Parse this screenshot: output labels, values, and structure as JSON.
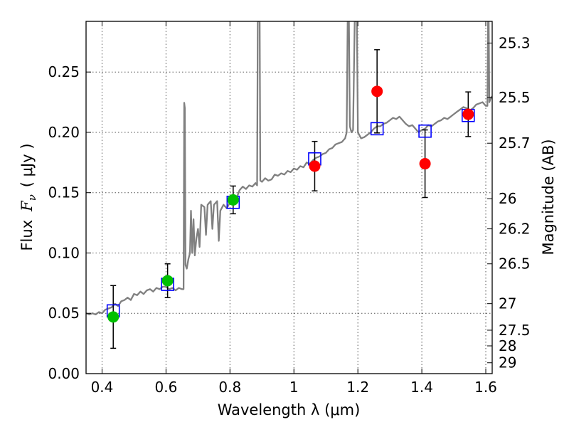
{
  "chart_data": {
    "type": "scatter",
    "xlabel": "Wavelength  λ (μm)",
    "ylabel_text": "Flux",
    "ylabel_symbol": "F",
    "ylabel_subscript": "ν",
    "ylabel_unit": "( μJy )",
    "y2label": "Magnitude (AB)",
    "xlim": [
      0.35,
      1.62
    ],
    "ylim": [
      0.0,
      0.292
    ],
    "xticks": [
      0.4,
      0.6,
      0.8,
      1.0,
      1.2,
      1.4,
      1.6
    ],
    "xtick_labels": [
      "0.4",
      "0.6",
      "0.8",
      "1",
      "1.2",
      "1.4",
      "1.6"
    ],
    "yticks": [
      0.0,
      0.05,
      0.1,
      0.15,
      0.2,
      0.25
    ],
    "ytick_labels": [
      "0.00",
      "0.05",
      "0.10",
      "0.15",
      "0.20",
      "0.25"
    ],
    "y2ticks": [
      {
        "flux": 0.274,
        "label": "25.3"
      },
      {
        "flux": 0.229,
        "label": "25.5"
      },
      {
        "flux": 0.191,
        "label": "25.7"
      },
      {
        "flux": 0.145,
        "label": "26"
      },
      {
        "flux": 0.12,
        "label": "26.2"
      },
      {
        "flux": 0.091,
        "label": "26.5"
      },
      {
        "flux": 0.058,
        "label": "27"
      },
      {
        "flux": 0.036,
        "label": "27.5"
      },
      {
        "flux": 0.023,
        "label": "28"
      },
      {
        "flux": 0.009,
        "label": "29"
      }
    ],
    "grid": true,
    "colors": {
      "model": "#808080",
      "model_photometry": "#0000ff",
      "optical_obs": "#00c000",
      "nir_obs": "#ff0000",
      "errorbar": "#000000",
      "grid": "#555555"
    },
    "series": [
      {
        "name": "model_spectrum",
        "style": "line",
        "points": [
          [
            0.35,
            0.05
          ],
          [
            0.36,
            0.049
          ],
          [
            0.37,
            0.05
          ],
          [
            0.38,
            0.049
          ],
          [
            0.39,
            0.051
          ],
          [
            0.4,
            0.05
          ],
          [
            0.41,
            0.053
          ],
          [
            0.42,
            0.054
          ],
          [
            0.43,
            0.055
          ],
          [
            0.44,
            0.058
          ],
          [
            0.45,
            0.056
          ],
          [
            0.46,
            0.06
          ],
          [
            0.47,
            0.061
          ],
          [
            0.48,
            0.063
          ],
          [
            0.49,
            0.061
          ],
          [
            0.5,
            0.066
          ],
          [
            0.51,
            0.065
          ],
          [
            0.52,
            0.068
          ],
          [
            0.53,
            0.066
          ],
          [
            0.54,
            0.069
          ],
          [
            0.55,
            0.07
          ],
          [
            0.56,
            0.068
          ],
          [
            0.57,
            0.071
          ],
          [
            0.58,
            0.07
          ],
          [
            0.59,
            0.072
          ],
          [
            0.6,
            0.072
          ],
          [
            0.61,
            0.07
          ],
          [
            0.62,
            0.071
          ],
          [
            0.63,
            0.069
          ],
          [
            0.64,
            0.071
          ],
          [
            0.65,
            0.07
          ],
          [
            0.655,
            0.07
          ],
          [
            0.657,
            0.2245
          ],
          [
            0.659,
            0.22
          ],
          [
            0.661,
            0.09
          ],
          [
            0.665,
            0.087
          ],
          [
            0.67,
            0.095
          ],
          [
            0.675,
            0.1
          ],
          [
            0.678,
            0.135
          ],
          [
            0.682,
            0.1
          ],
          [
            0.686,
            0.128
          ],
          [
            0.69,
            0.098
          ],
          [
            0.695,
            0.112
          ],
          [
            0.7,
            0.12
          ],
          [
            0.705,
            0.105
          ],
          [
            0.71,
            0.14
          ],
          [
            0.72,
            0.138
          ],
          [
            0.725,
            0.115
          ],
          [
            0.73,
            0.14
          ],
          [
            0.74,
            0.143
          ],
          [
            0.745,
            0.12
          ],
          [
            0.75,
            0.14
          ],
          [
            0.76,
            0.143
          ],
          [
            0.765,
            0.11
          ],
          [
            0.77,
            0.135
          ],
          [
            0.78,
            0.14
          ],
          [
            0.79,
            0.137
          ],
          [
            0.8,
            0.142
          ],
          [
            0.81,
            0.148
          ],
          [
            0.82,
            0.145
          ],
          [
            0.83,
            0.152
          ],
          [
            0.84,
            0.155
          ],
          [
            0.85,
            0.153
          ],
          [
            0.86,
            0.156
          ],
          [
            0.87,
            0.155
          ],
          [
            0.88,
            0.158
          ],
          [
            0.885,
            0.156
          ],
          [
            0.887,
            0.292
          ],
          [
            0.893,
            0.292
          ],
          [
            0.895,
            0.16
          ],
          [
            0.9,
            0.159
          ],
          [
            0.91,
            0.162
          ],
          [
            0.92,
            0.16
          ],
          [
            0.93,
            0.161
          ],
          [
            0.94,
            0.165
          ],
          [
            0.95,
            0.164
          ],
          [
            0.96,
            0.166
          ],
          [
            0.97,
            0.165
          ],
          [
            0.98,
            0.168
          ],
          [
            0.99,
            0.167
          ],
          [
            1.0,
            0.17
          ],
          [
            1.01,
            0.169
          ],
          [
            1.02,
            0.172
          ],
          [
            1.03,
            0.171
          ],
          [
            1.04,
            0.175
          ],
          [
            1.05,
            0.174
          ],
          [
            1.06,
            0.177
          ],
          [
            1.07,
            0.179
          ],
          [
            1.08,
            0.18
          ],
          [
            1.09,
            0.182
          ],
          [
            1.1,
            0.183
          ],
          [
            1.11,
            0.186
          ],
          [
            1.12,
            0.187
          ],
          [
            1.13,
            0.19
          ],
          [
            1.14,
            0.191
          ],
          [
            1.15,
            0.192
          ],
          [
            1.16,
            0.195
          ],
          [
            1.165,
            0.2
          ],
          [
            1.168,
            0.292
          ],
          [
            1.172,
            0.292
          ],
          [
            1.175,
            0.205
          ],
          [
            1.18,
            0.2
          ],
          [
            1.185,
            0.202
          ],
          [
            1.19,
            0.292
          ],
          [
            1.197,
            0.292
          ],
          [
            1.2,
            0.2
          ],
          [
            1.21,
            0.195
          ],
          [
            1.22,
            0.196
          ],
          [
            1.23,
            0.198
          ],
          [
            1.24,
            0.2
          ],
          [
            1.25,
            0.203
          ],
          [
            1.26,
            0.205
          ],
          [
            1.27,
            0.205
          ],
          [
            1.28,
            0.207
          ],
          [
            1.29,
            0.208
          ],
          [
            1.3,
            0.21
          ],
          [
            1.31,
            0.212
          ],
          [
            1.32,
            0.211
          ],
          [
            1.33,
            0.213
          ],
          [
            1.34,
            0.21
          ],
          [
            1.35,
            0.207
          ],
          [
            1.36,
            0.205
          ],
          [
            1.37,
            0.206
          ],
          [
            1.38,
            0.203
          ],
          [
            1.39,
            0.2
          ],
          [
            1.4,
            0.202
          ],
          [
            1.41,
            0.203
          ],
          [
            1.42,
            0.206
          ],
          [
            1.43,
            0.205
          ],
          [
            1.44,
            0.207
          ],
          [
            1.45,
            0.209
          ],
          [
            1.46,
            0.21
          ],
          [
            1.47,
            0.212
          ],
          [
            1.48,
            0.211
          ],
          [
            1.49,
            0.213
          ],
          [
            1.5,
            0.215
          ],
          [
            1.51,
            0.217
          ],
          [
            1.52,
            0.219
          ],
          [
            1.53,
            0.221
          ],
          [
            1.54,
            0.22
          ],
          [
            1.55,
            0.218
          ],
          [
            1.56,
            0.22
          ],
          [
            1.57,
            0.223
          ],
          [
            1.58,
            0.224
          ],
          [
            1.59,
            0.225
          ],
          [
            1.6,
            0.222
          ],
          [
            1.605,
            0.222
          ],
          [
            1.607,
            0.292
          ],
          [
            1.609,
            0.292
          ],
          [
            1.611,
            0.225
          ],
          [
            1.615,
            0.228
          ],
          [
            1.62,
            0.23
          ]
        ]
      },
      {
        "name": "model_photometry",
        "style": "open-square",
        "points": [
          [
            0.435,
            0.052
          ],
          [
            0.605,
            0.074
          ],
          [
            0.81,
            0.142
          ],
          [
            1.065,
            0.178
          ],
          [
            1.26,
            0.203
          ],
          [
            1.41,
            0.201
          ],
          [
            1.545,
            0.214
          ]
        ]
      },
      {
        "name": "optical_obs",
        "style": "filled-circle",
        "points": [
          {
            "x": 0.435,
            "y": 0.047,
            "err": 0.026
          },
          {
            "x": 0.605,
            "y": 0.077,
            "err": 0.014
          },
          {
            "x": 0.81,
            "y": 0.144,
            "err": 0.0115
          }
        ]
      },
      {
        "name": "nir_obs",
        "style": "filled-circle",
        "points": [
          {
            "x": 1.065,
            "y": 0.172,
            "err": 0.0205
          },
          {
            "x": 1.26,
            "y": 0.234,
            "err": 0.0345
          },
          {
            "x": 1.41,
            "y": 0.174,
            "err": 0.028
          },
          {
            "x": 1.545,
            "y": 0.215,
            "err": 0.0185
          }
        ]
      }
    ]
  }
}
